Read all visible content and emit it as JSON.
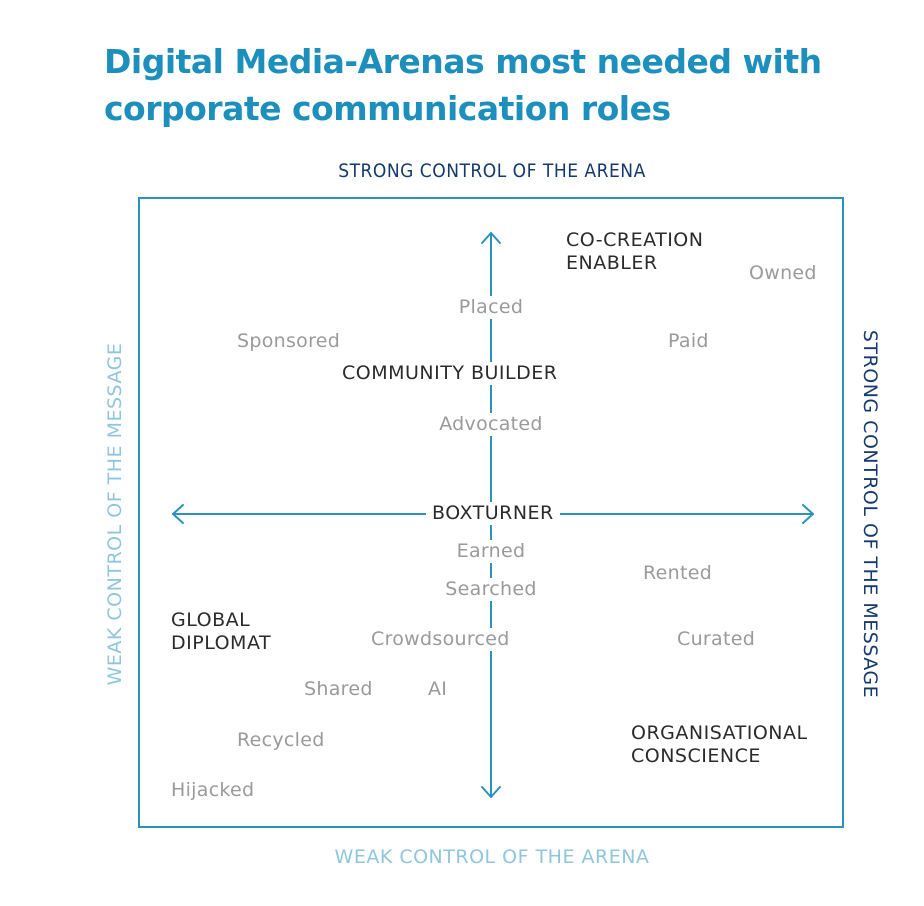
{
  "title": {
    "line1": "Digital Media-Arenas most needed with",
    "line2": "corporate communication roles"
  },
  "axes": {
    "top": "STRONG CONTROL OF THE ARENA",
    "bottom": "WEAK CONTROL OF THE ARENA",
    "left": "WEAK CONTROL OF THE MESSAGE",
    "right": "STRONG CONTROL OF THE MESSAGE"
  },
  "roles": {
    "co_creation": {
      "line1": "CO-CREATION",
      "line2": "ENABLER"
    },
    "community_builder": "COMMUNITY BUILDER",
    "boxturner": "BOXTURNER",
    "global_diplomat": {
      "line1": "GLOBAL",
      "line2": "DIPLOMAT"
    },
    "organisational_conscience": {
      "line1": "ORGANISATIONAL",
      "line2": "CONSCIENCE"
    }
  },
  "arenas": {
    "owned": "Owned",
    "placed": "Placed",
    "sponsored": "Sponsored",
    "paid": "Paid",
    "advocated": "Advocated",
    "earned": "Earned",
    "rented": "Rented",
    "searched": "Searched",
    "crowdsourced": "Crowdsourced",
    "curated": "Curated",
    "shared": "Shared",
    "ai": "AI",
    "recycled": "Recycled",
    "hijacked": "Hijacked"
  },
  "colors": {
    "title": "#1c8fbc",
    "frame": "#2a92bb",
    "axis_strong": "#153a6e",
    "axis_weak": "#8fc6dc",
    "role_text": "#2b2b2b",
    "arena_text": "#9a9a9a"
  }
}
